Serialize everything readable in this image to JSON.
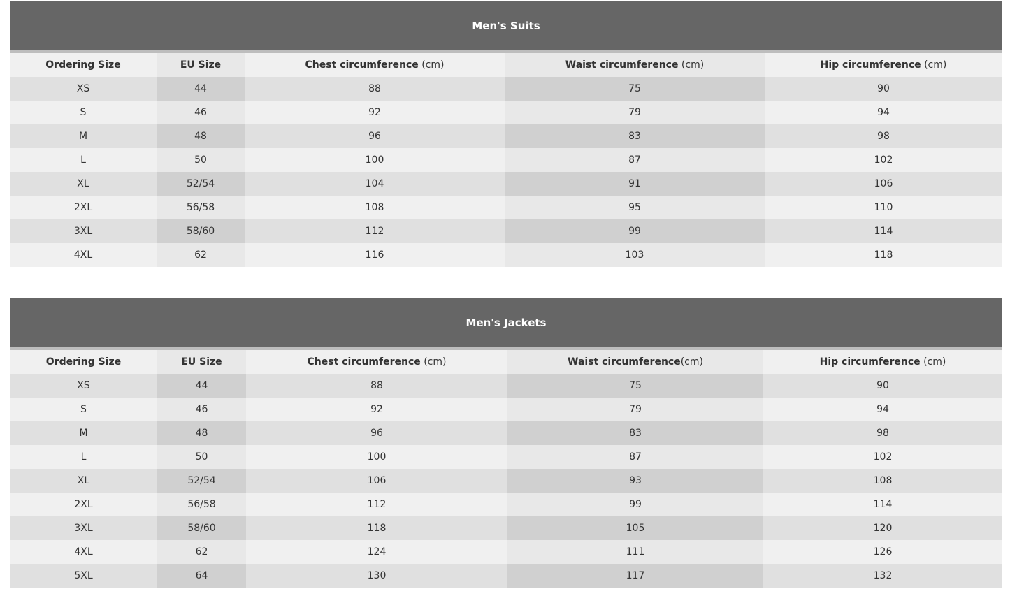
{
  "tables": [
    {
      "title": "Men's Suits",
      "headers": [
        {
          "bold": "Ordering Size",
          "unit": ""
        },
        {
          "bold": "EU Size",
          "unit": ""
        },
        {
          "bold": "Chest circumference",
          "unit": " (cm)"
        },
        {
          "bold": "Waist circumference",
          "unit": " (cm)"
        },
        {
          "bold": "Hip circumference",
          "unit": " (cm)"
        }
      ],
      "rows": [
        [
          "XS",
          "44",
          "88",
          "75",
          "90"
        ],
        [
          "S",
          "46",
          "92",
          "79",
          "94"
        ],
        [
          "M",
          "48",
          "96",
          "83",
          "98"
        ],
        [
          "L",
          "50",
          "100",
          "87",
          "102"
        ],
        [
          "XL",
          "52/54",
          "104",
          "91",
          "106"
        ],
        [
          "2XL",
          "56/58",
          "108",
          "95",
          "110"
        ],
        [
          "3XL",
          "58/60",
          "112",
          "99",
          "114"
        ],
        [
          "4XL",
          "62",
          "116",
          "103",
          "118"
        ]
      ]
    },
    {
      "title": "Men's Jackets",
      "headers": [
        {
          "bold": "Ordering Size",
          "unit": ""
        },
        {
          "bold": "EU Size",
          "unit": ""
        },
        {
          "bold": "Chest circumference",
          "unit": " (cm)"
        },
        {
          "bold": "Waist circumference",
          "unit": "(cm)"
        },
        {
          "bold": "Hip circumference",
          "unit": " (cm)"
        }
      ],
      "rows": [
        [
          "XS",
          "44",
          "88",
          "75",
          "90"
        ],
        [
          "S",
          "46",
          "92",
          "79",
          "94"
        ],
        [
          "M",
          "48",
          "96",
          "83",
          "98"
        ],
        [
          "L",
          "50",
          "100",
          "87",
          "102"
        ],
        [
          "XL",
          "52/54",
          "106",
          "93",
          "108"
        ],
        [
          "2XL",
          "56/58",
          "112",
          "99",
          "114"
        ],
        [
          "3XL",
          "58/60",
          "118",
          "105",
          "120"
        ],
        [
          "4XL",
          "62",
          "124",
          "111",
          "126"
        ],
        [
          "5XL",
          "64",
          "130",
          "117",
          "132"
        ]
      ]
    }
  ]
}
